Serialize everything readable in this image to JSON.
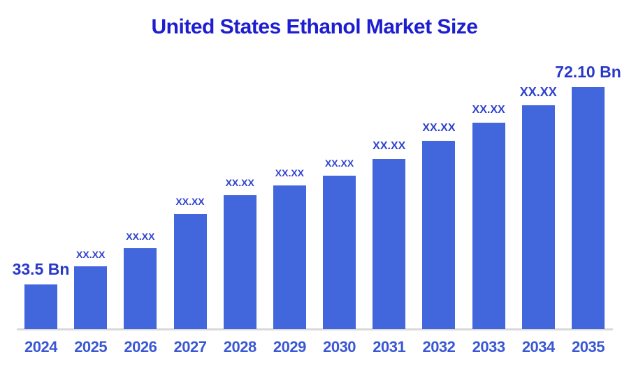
{
  "title": "United States Ethanol Market Size",
  "colors": {
    "bar": "#4266DB",
    "title": "#1D1DD1",
    "value_label": "#2F43CC",
    "value_label_strong": "#2A38C8",
    "axis_label": "#3A58D4",
    "axis_line": "#D9D9D9",
    "background": "#FFFFFF"
  },
  "chart_data": {
    "type": "bar",
    "title": "United States Ethanol Market Size",
    "unit": "Bn",
    "categories": [
      "2024",
      "2025",
      "2026",
      "2027",
      "2028",
      "2029",
      "2030",
      "2031",
      "2032",
      "2033",
      "2034",
      "2035"
    ],
    "values": [
      33.5,
      37.0,
      40.6,
      47.3,
      51.0,
      52.9,
      54.8,
      58.1,
      61.6,
      65.2,
      68.5,
      72.1
    ],
    "values_estimated": true,
    "value_labels": [
      "33.5 Bn",
      "XX.XX",
      "XX.XX",
      "XX.XX",
      "XX.XX",
      "XX.XX",
      "XX.XX",
      "XX.XX",
      "XX.XX",
      "XX.XX",
      "XX.XX",
      "72.10 Bn"
    ],
    "first_value_label": "33.5 Bn",
    "last_value_label": "72.10 Bn",
    "masked_value_label": "XX.XX",
    "xlabel": "",
    "ylabel": "",
    "legend": null,
    "grid": false,
    "value_axis_range_estimate": [
      24.8,
      72.1
    ]
  }
}
